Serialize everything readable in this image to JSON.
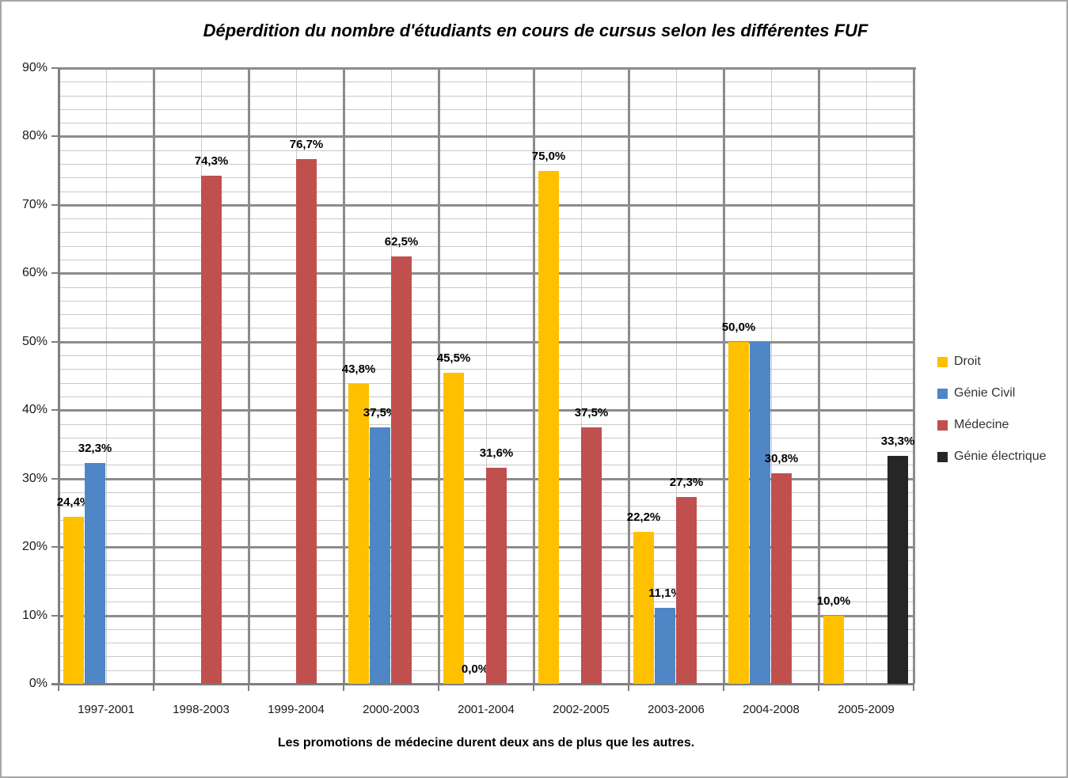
{
  "title": "Déperdition du nombre d'étudiants en cours de cursus selon les différentes FUF",
  "footer": "Les promotions de médecine durent deux ans de plus que les autres.",
  "chart_data": {
    "type": "bar",
    "title": "Déperdition du nombre d'étudiants en cours de cursus selon les différentes FUF",
    "subtitle": "Les promotions de médecine durent deux ans de plus que les autres.",
    "categories": [
      "1997-2001",
      "1998-2003",
      "1999-2004",
      "2000-2003",
      "2001-2004",
      "2002-2005",
      "2003-2006",
      "2004-2008",
      "2005-2009"
    ],
    "series": [
      {
        "name": "Droit",
        "color": "#FFC000",
        "values": [
          24.4,
          null,
          null,
          43.8,
          45.5,
          75.0,
          22.2,
          50.0,
          10.0
        ],
        "labels": [
          "24,4%",
          null,
          null,
          "43,8%",
          "45,5%",
          "75,0%",
          "22,2%",
          "50,0%",
          "10,0%"
        ]
      },
      {
        "name": "Génie Civil",
        "color": "#4F86C6",
        "values": [
          32.3,
          null,
          null,
          37.5,
          0.0,
          null,
          11.1,
          50.0,
          null
        ],
        "labels": [
          "32,3%",
          null,
          null,
          "37,5%",
          "0,0%",
          null,
          "11,1%",
          null,
          null
        ]
      },
      {
        "name": "Médecine",
        "color": "#C0504D",
        "values": [
          null,
          74.3,
          76.7,
          62.5,
          31.6,
          37.5,
          27.3,
          30.8,
          null
        ],
        "labels": [
          null,
          "74,3%",
          "76,7%",
          "62,5%",
          "31,6%",
          "37,5%",
          "27,3%",
          "30,8%",
          null
        ]
      },
      {
        "name": "Génie électrique",
        "color": "#262626",
        "values": [
          null,
          null,
          null,
          null,
          null,
          null,
          null,
          null,
          33.3
        ],
        "labels": [
          null,
          null,
          null,
          null,
          null,
          null,
          null,
          null,
          "33,3%"
        ]
      }
    ],
    "y_ticks": [
      {
        "label": "0%",
        "value": 0
      },
      {
        "label": "10%",
        "value": 10
      },
      {
        "label": "20%",
        "value": 20
      },
      {
        "label": "30%",
        "value": 30
      },
      {
        "label": "40%",
        "value": 40
      },
      {
        "label": "50%",
        "value": 50
      },
      {
        "label": "60%",
        "value": 60
      },
      {
        "label": "70%",
        "value": 70
      },
      {
        "label": "80%",
        "value": 80
      },
      {
        "label": "90%",
        "value": 90
      }
    ],
    "ylim": [
      0,
      90
    ],
    "y_major_step": 10,
    "y_minor_step": 2,
    "grid": true,
    "legend_position": "right",
    "value_format": "comma-decimal-percent"
  },
  "colors": {
    "major_grid": "#8c8c8c",
    "minor_grid": "#c9c9c9",
    "axis": "#7f7f7f",
    "background": "#ffffff",
    "border": "#a6a6a6"
  }
}
